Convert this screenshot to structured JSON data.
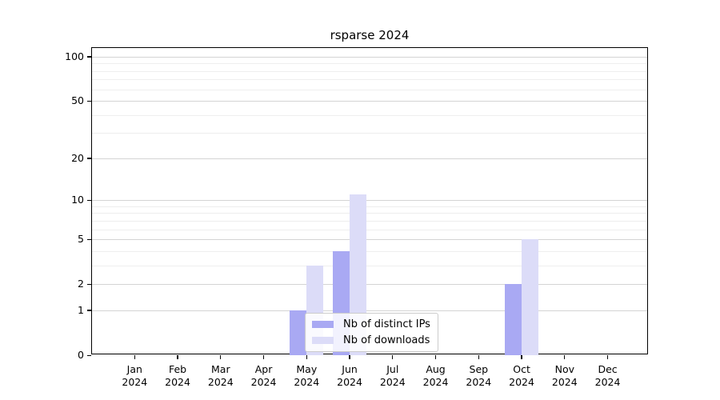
{
  "chart_data": {
    "type": "bar",
    "title": "rsparse 2024",
    "categories": [
      {
        "month": "Jan",
        "year": "2024"
      },
      {
        "month": "Feb",
        "year": "2024"
      },
      {
        "month": "Mar",
        "year": "2024"
      },
      {
        "month": "Apr",
        "year": "2024"
      },
      {
        "month": "May",
        "year": "2024"
      },
      {
        "month": "Jun",
        "year": "2024"
      },
      {
        "month": "Jul",
        "year": "2024"
      },
      {
        "month": "Aug",
        "year": "2024"
      },
      {
        "month": "Sep",
        "year": "2024"
      },
      {
        "month": "Oct",
        "year": "2024"
      },
      {
        "month": "Nov",
        "year": "2024"
      },
      {
        "month": "Dec",
        "year": "2024"
      }
    ],
    "series": [
      {
        "name": "Nb of distinct IPs",
        "color": "#a9a9f3",
        "values": [
          0,
          0,
          0,
          0,
          1,
          4,
          0,
          0,
          0,
          2,
          0,
          0
        ]
      },
      {
        "name": "Nb of downloads",
        "color": "#dcdcf8",
        "values": [
          0,
          0,
          0,
          0,
          3,
          11,
          0,
          0,
          0,
          5,
          0,
          0
        ]
      }
    ],
    "yscale": "log1p",
    "ylim": [
      0,
      115
    ],
    "yticks": [
      0,
      1,
      2,
      5,
      10,
      20,
      50,
      100
    ],
    "minor_gridlines": [
      3,
      4,
      6,
      7,
      8,
      9,
      30,
      40,
      60,
      70,
      80,
      90
    ],
    "grid": "on",
    "legend_position": "inside-bottom-center",
    "axis_color": "#000000",
    "major_grid_color": "#d4d4d4",
    "minor_grid_color": "#eeeeee"
  }
}
